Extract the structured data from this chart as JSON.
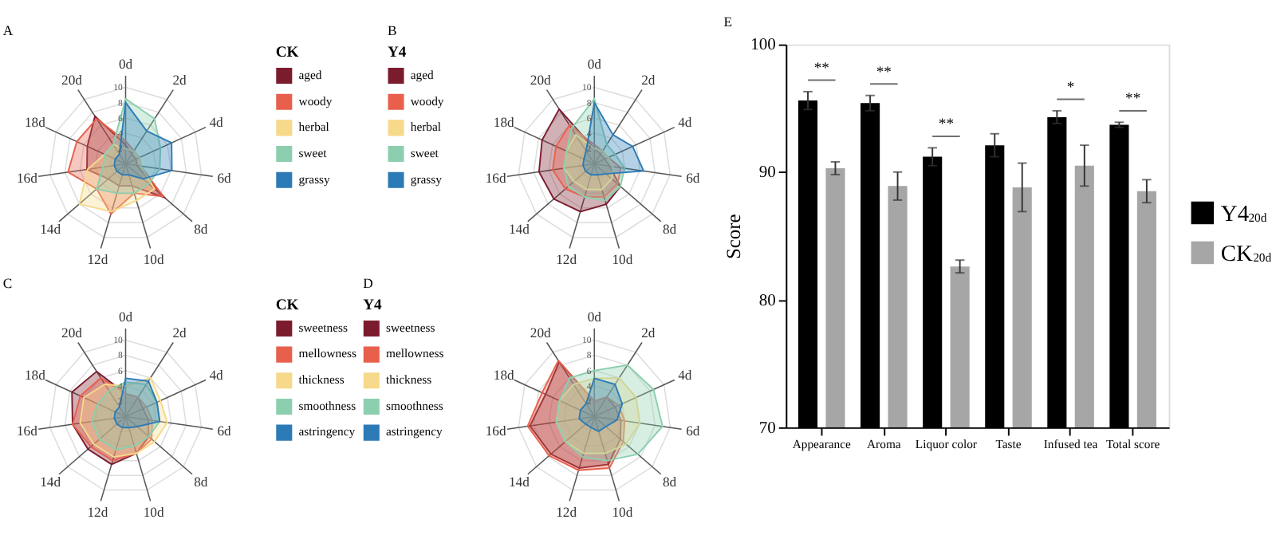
{
  "chart_data": [
    {
      "type": "radar",
      "title": "A",
      "legend_title": "CK",
      "legend": "right",
      "grid": true,
      "categories": [
        "0d",
        "2d",
        "4d",
        "6d",
        "8d",
        "10d",
        "12d",
        "14d",
        "16d",
        "18d",
        "20d"
      ],
      "ylim": [
        0,
        10
      ],
      "yticks": [
        2,
        4,
        6,
        8,
        10
      ],
      "series": [
        {
          "name": "aged",
          "color": "#7b1c2e",
          "values": [
            2.5,
            1.5,
            1.5,
            1.5,
            6.7,
            3,
            3,
            3,
            5.1,
            5.5,
            7.4
          ]
        },
        {
          "name": "woody",
          "color": "#e8604c",
          "values": [
            3,
            2,
            2,
            2,
            6.5,
            4,
            6.8,
            5,
            7.6,
            7,
            7
          ]
        },
        {
          "name": "herbal",
          "color": "#f6d98a",
          "values": [
            2,
            2,
            2,
            2,
            5,
            5,
            6.5,
            8,
            5,
            3,
            3
          ]
        },
        {
          "name": "sweet",
          "color": "#8ccfae",
          "values": [
            8.5,
            7,
            5,
            4.5,
            4,
            4,
            4,
            5,
            3,
            3,
            3
          ]
        },
        {
          "name": "grassy",
          "color": "#2c7bb6",
          "values": [
            8,
            5.1,
            6.6,
            6.1,
            3,
            1.5,
            1.5,
            1.5,
            1.5,
            1.5,
            1.5
          ]
        }
      ]
    },
    {
      "type": "radar",
      "title": "B",
      "legend_title": "Y4",
      "legend": "left",
      "grid": true,
      "categories": [
        "0d",
        "2d",
        "4d",
        "6d",
        "8d",
        "10d",
        "12d",
        "14d",
        "16d",
        "18d",
        "20d"
      ],
      "ylim": [
        0,
        10
      ],
      "yticks": [
        2,
        4,
        6,
        8,
        10
      ],
      "series": [
        {
          "name": "aged",
          "color": "#7b1c2e",
          "values": [
            2,
            1.5,
            1.5,
            2,
            4.5,
            5.5,
            6.5,
            7,
            7.3,
            7.5,
            8.5
          ]
        },
        {
          "name": "woody",
          "color": "#e8604c",
          "values": [
            2.5,
            2,
            2,
            3.5,
            4,
            4.5,
            4.5,
            5,
            5.5,
            5.5,
            6
          ]
        },
        {
          "name": "herbal",
          "color": "#f6d98a",
          "values": [
            2,
            2,
            2,
            2.5,
            3,
            3.5,
            3.5,
            3.5,
            4,
            4,
            4.5
          ]
        },
        {
          "name": "sweet",
          "color": "#8ccfae",
          "values": [
            8.5,
            3,
            3,
            4,
            4.5,
            5,
            4.5,
            4.5,
            4,
            4,
            5.5
          ]
        },
        {
          "name": "grassy",
          "color": "#2c7bb6",
          "values": [
            8,
            4.5,
            5.5,
            6.5,
            2,
            1.5,
            1.5,
            1.5,
            1.5,
            1.5,
            2
          ]
        }
      ]
    },
    {
      "type": "radar",
      "title": "C",
      "legend_title": "CK",
      "legend": "right",
      "grid": true,
      "categories": [
        "0d",
        "2d",
        "4d",
        "6d",
        "8d",
        "10d",
        "12d",
        "14d",
        "16d",
        "18d",
        "20d"
      ],
      "ylim": [
        0,
        10
      ],
      "yticks": [
        2,
        4,
        6,
        8,
        10
      ],
      "series": [
        {
          "name": "sweetness",
          "color": "#7b1c2e",
          "values": [
            3,
            3,
            2.5,
            3,
            4,
            5,
            6.5,
            6.5,
            7,
            7.7,
            7
          ]
        },
        {
          "name": "mellowness",
          "color": "#e8604c",
          "values": [
            3,
            3,
            3,
            3.5,
            4.5,
            5,
            6,
            6,
            7,
            6.5,
            6
          ]
        },
        {
          "name": "thickness",
          "color": "#f6d98a",
          "values": [
            4,
            6,
            5,
            5.5,
            5,
            5,
            5.5,
            5.5,
            6,
            6,
            5
          ]
        },
        {
          "name": "smoothness",
          "color": "#8ccfae",
          "values": [
            4.5,
            5,
            4.5,
            4.5,
            4,
            4,
            4.5,
            4.5,
            4.5,
            4,
            4
          ]
        },
        {
          "name": "astringency",
          "color": "#2c7bb6",
          "values": [
            5,
            5.5,
            4.5,
            4.5,
            2,
            1.5,
            1.5,
            1.5,
            1.5,
            1.5,
            1.5
          ]
        }
      ]
    },
    {
      "type": "radar",
      "title": "D",
      "legend_title": "Y4",
      "legend": "left",
      "grid": true,
      "categories": [
        "0d",
        "2d",
        "4d",
        "6d",
        "8d",
        "10d",
        "12d",
        "14d",
        "16d",
        "18d",
        "20d"
      ],
      "ylim": [
        0,
        10
      ],
      "yticks": [
        2,
        4,
        6,
        8,
        10
      ],
      "series": [
        {
          "name": "sweetness",
          "color": "#7b1c2e",
          "values": [
            2,
            3,
            3,
            3.5,
            4.5,
            6.5,
            7,
            7.5,
            8.5,
            7,
            8.5
          ]
        },
        {
          "name": "mellowness",
          "color": "#e8604c",
          "values": [
            2,
            3,
            3.5,
            4,
            5,
            7,
            7.3,
            7.8,
            8.8,
            7.5,
            8.7
          ]
        },
        {
          "name": "thickness",
          "color": "#f6d98a",
          "values": [
            5,
            6,
            6,
            6,
            5.5,
            5,
            5,
            5,
            5,
            5,
            5
          ]
        },
        {
          "name": "smoothness",
          "color": "#8ccfae",
          "values": [
            6,
            8,
            8.5,
            9,
            7.5,
            6,
            5.5,
            5,
            5,
            5,
            6
          ]
        },
        {
          "name": "astringency",
          "color": "#2c7bb6",
          "values": [
            5,
            5,
            4,
            3,
            2,
            2,
            1.5,
            1.5,
            2,
            2,
            2
          ]
        }
      ]
    },
    {
      "type": "bar",
      "title": "E",
      "ylabel": "Score",
      "legend": "right",
      "grid": false,
      "categories": [
        "Appearance",
        "Aroma",
        "Liquor color",
        "Taste",
        "Infused tea",
        "Total score"
      ],
      "ylim": [
        70,
        100
      ],
      "yticks": [
        70,
        80,
        90,
        100
      ],
      "series": [
        {
          "name": "Y4$_{20d}$",
          "color": "#000000",
          "values": [
            95.6,
            95.4,
            91.2,
            92.1,
            94.3,
            93.7
          ],
          "errors": [
            0.7,
            0.6,
            0.7,
            0.9,
            0.5,
            0.2
          ]
        },
        {
          "name": "CK$_{20d}$",
          "color": "#a6a6a6",
          "values": [
            90.3,
            88.9,
            82.6,
            88.8,
            90.5,
            88.5
          ],
          "errors": [
            0.5,
            1.1,
            0.5,
            1.9,
            1.6,
            0.9
          ]
        }
      ],
      "annotations": [
        "**",
        "**",
        "**",
        "*",
        "**"
      ]
    }
  ]
}
